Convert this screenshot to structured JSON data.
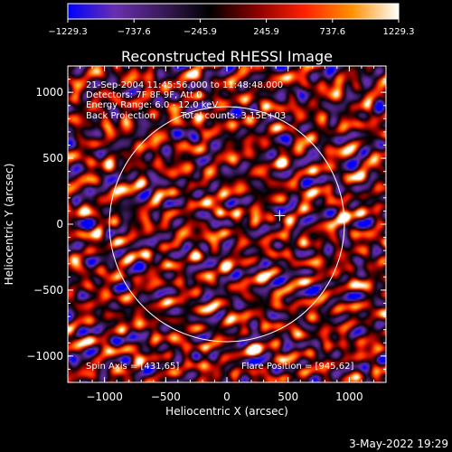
{
  "chart_data": {
    "type": "heatmap",
    "title": "Reconstructed RHESSI Image",
    "xlabel": "Heliocentric X (arcsec)",
    "ylabel": "Heliocentric Y (arcsec)",
    "xlim": [
      -1300,
      1300
    ],
    "ylim": [
      -1200,
      1200
    ],
    "x_ticks": [
      -1000,
      -500,
      0,
      500,
      1000
    ],
    "y_ticks": [
      -1000,
      -500,
      0,
      500,
      1000
    ],
    "x_tick_labels": [
      "−1000",
      "−500",
      "0",
      "500",
      "1000"
    ],
    "y_tick_labels": [
      "−1000",
      "−500",
      "0",
      "500",
      "1000"
    ],
    "colorbar": {
      "range": [
        -1229.3,
        1229.3
      ],
      "ticks": [
        -1229.3,
        -737.6,
        -245.9,
        245.9,
        737.6,
        1229.3
      ],
      "tick_labels": [
        "−1229.3",
        "−737.6",
        "−245.9",
        "245.9",
        "737.6",
        "1229.3"
      ],
      "colors": [
        "#0000ff",
        "#6a2fb0",
        "#3a1a5a",
        "#000000",
        "#8a0000",
        "#ff2000",
        "#ff9000",
        "#ffffff"
      ]
    },
    "annotations": [
      "21-Sep-2004 11:45:56.000 to 11:48:48.000",
      "Detectors: 7F 8F 9F, Att 0",
      "Energy Range: 6.0 - 12.0 keV",
      "Back Projection",
      "Total counts: 3.15E+03"
    ],
    "spin_axis_label": "Spin Axis = [431,65]",
    "flare_position_label": "Flare Position = [945,62]",
    "spin_axis": [
      431,
      65
    ],
    "flare_position": [
      945,
      62
    ],
    "solar_disk": {
      "center": [
        0,
        0
      ],
      "radius": 960
    },
    "hot_spots": [
      {
        "x": 945,
        "y": 62,
        "intensity": 1229.3
      },
      {
        "x": -70,
        "y": 100,
        "intensity": 950
      }
    ]
  },
  "footer": {
    "timestamp": "3-May-2022 19:29"
  }
}
